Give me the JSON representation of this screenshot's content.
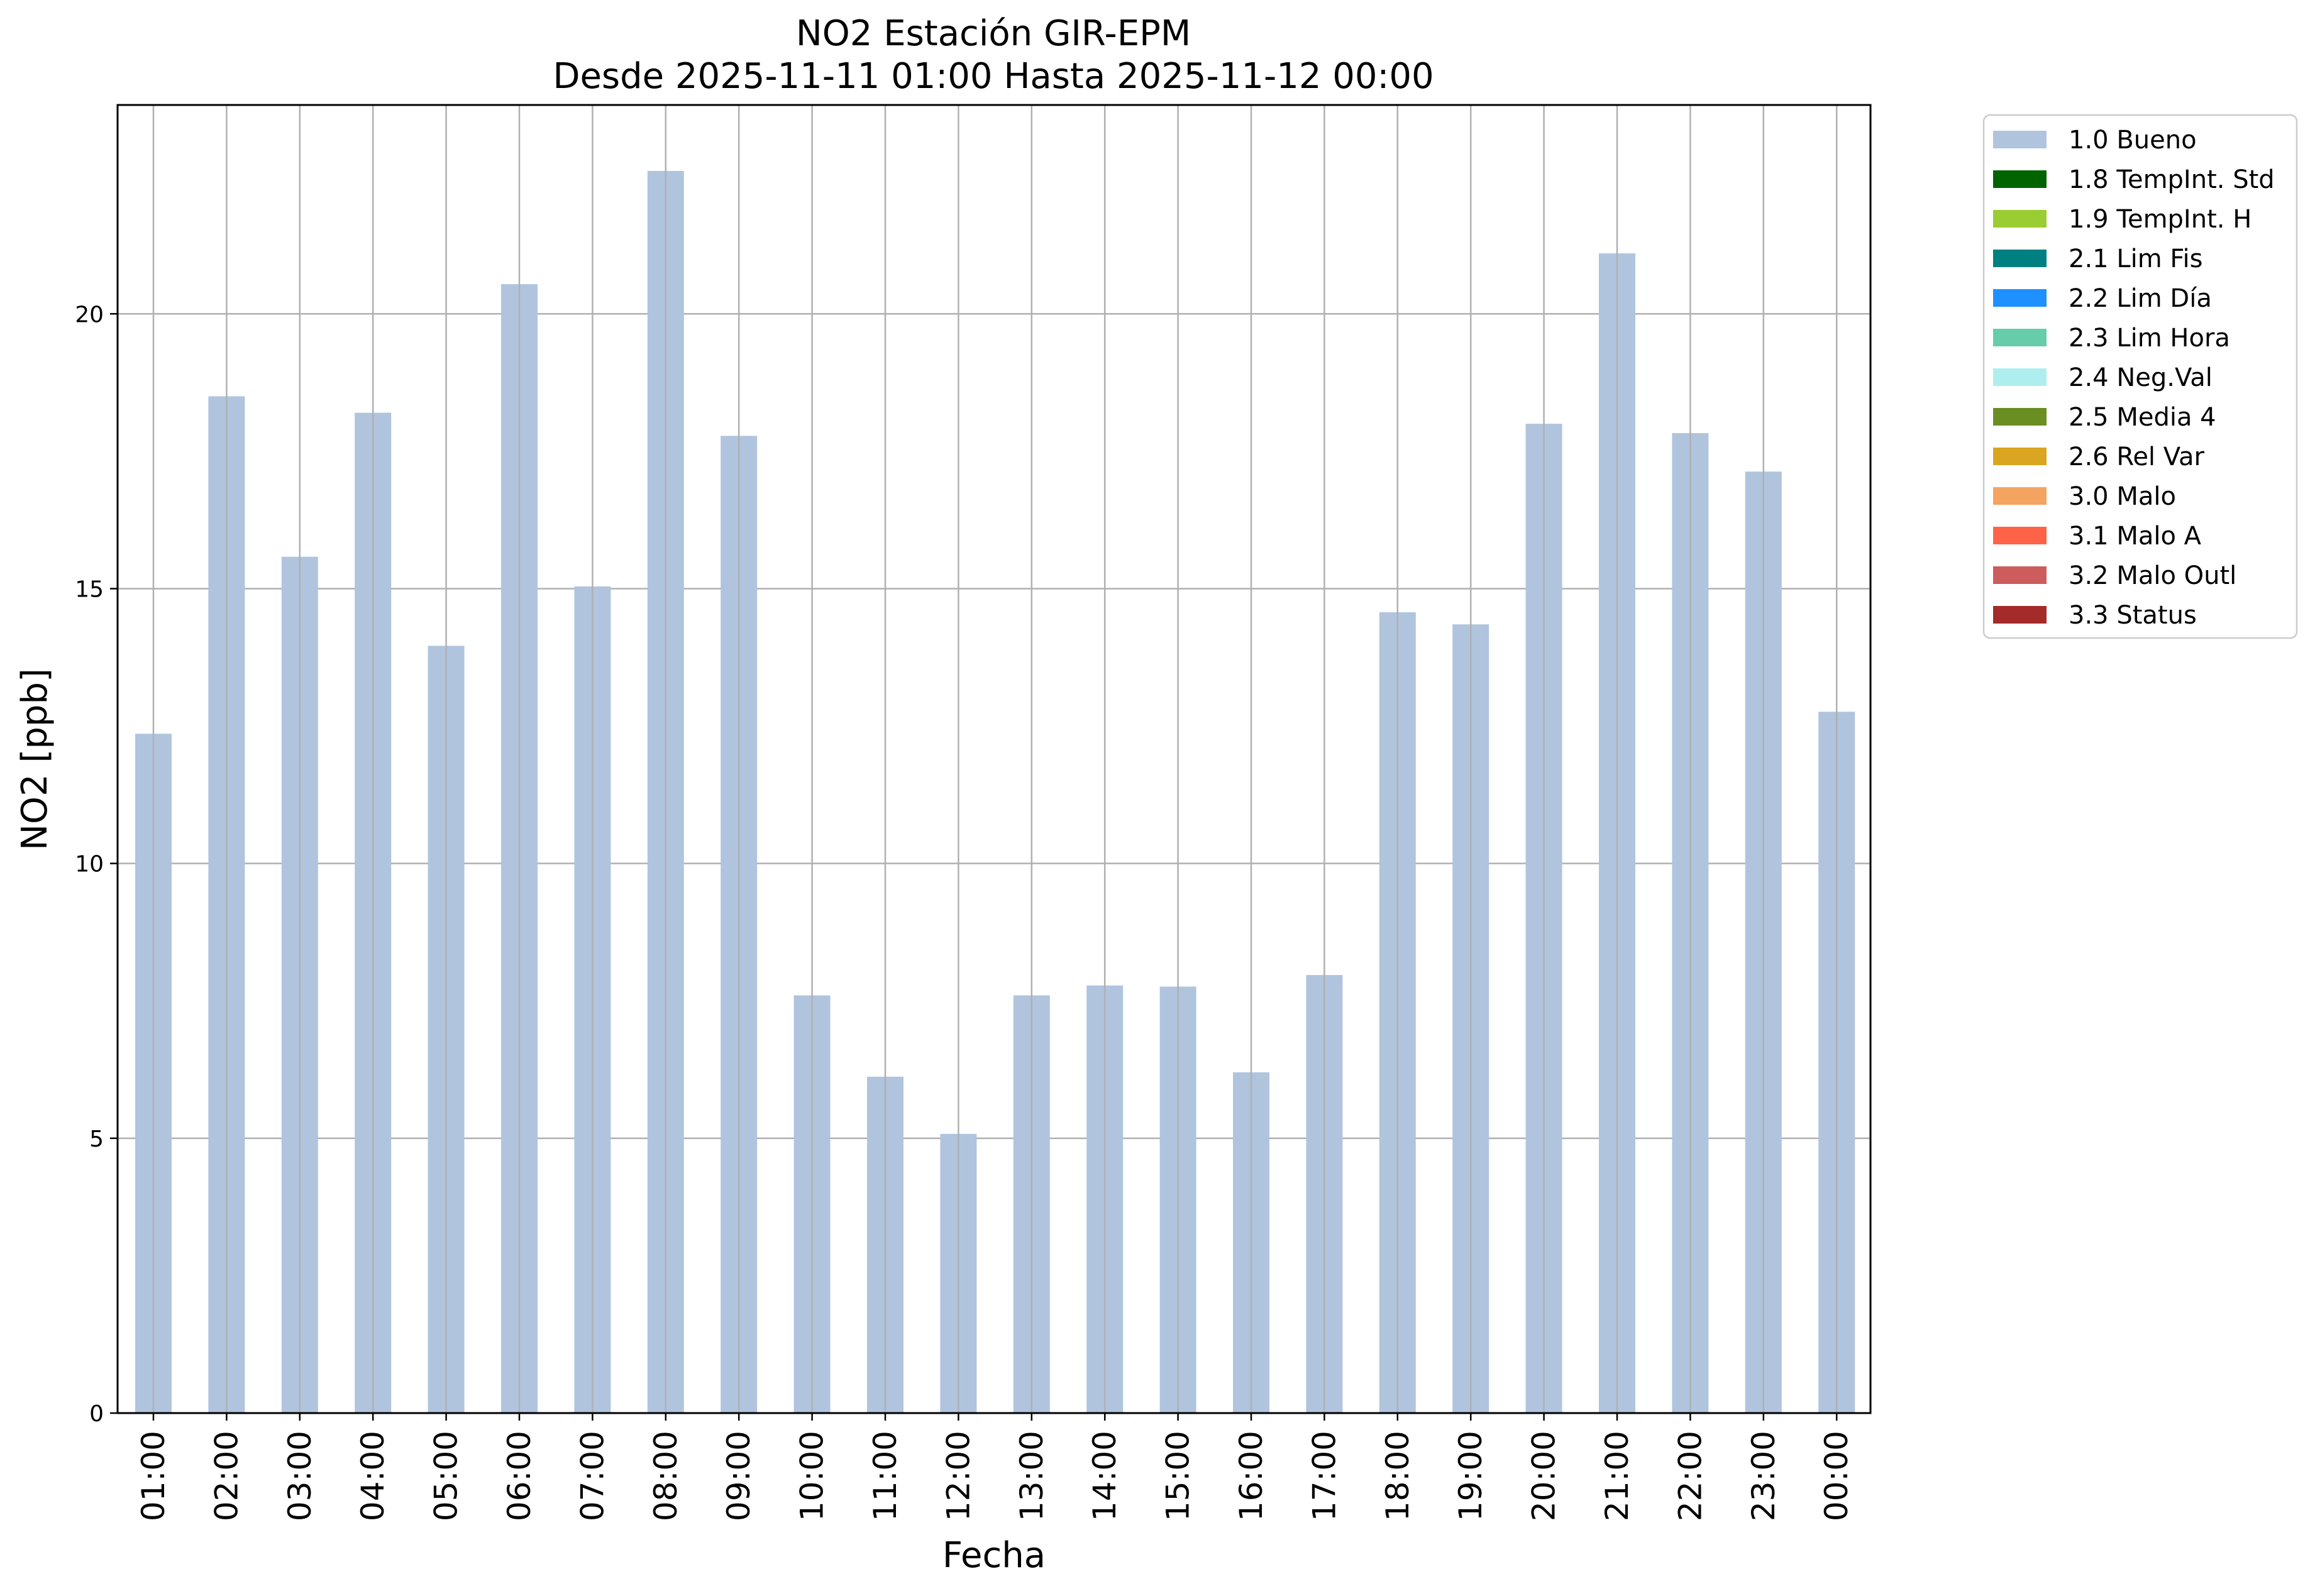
{
  "chart_data": {
    "type": "bar",
    "title": "NO2 Estación GIR-EPM",
    "subtitle": "Desde 2025-11-11 01:00 Hasta 2025-11-12 00:00",
    "xlabel": "Fecha",
    "ylabel": "NO2 [ppb]",
    "ylim": [
      0,
      23.8
    ],
    "yticks": [
      "0",
      "5",
      "10",
      "15",
      "20"
    ],
    "grid": true,
    "legend_position": "outside top-right",
    "categories": [
      "01:00",
      "02:00",
      "03:00",
      "04:00",
      "05:00",
      "06:00",
      "07:00",
      "08:00",
      "09:00",
      "10:00",
      "11:00",
      "12:00",
      "13:00",
      "14:00",
      "15:00",
      "16:00",
      "17:00",
      "18:00",
      "19:00",
      "20:00",
      "21:00",
      "22:00",
      "23:00",
      "00:00"
    ],
    "series": [
      {
        "name": "1.0 Bueno",
        "color": "#b0c4de",
        "values": [
          12.36,
          18.5,
          15.58,
          18.2,
          13.96,
          20.54,
          15.04,
          22.6,
          17.78,
          7.6,
          6.12,
          5.08,
          7.6,
          7.78,
          7.76,
          6.2,
          7.97,
          14.57,
          14.35,
          18.0,
          21.1,
          17.83,
          17.13,
          12.76
        ]
      }
    ],
    "legend": [
      {
        "label": "1.0 Bueno",
        "color": "#b0c4de"
      },
      {
        "label": "1.8 TempInt. Std",
        "color": "#006400"
      },
      {
        "label": "1.9 TempInt. H",
        "color": "#9acd32"
      },
      {
        "label": "2.1 Lim Fis",
        "color": "#008080"
      },
      {
        "label": "2.2 Lim Día",
        "color": "#1e90ff"
      },
      {
        "label": "2.3 Lim Hora",
        "color": "#66cdaa"
      },
      {
        "label": "2.4 Neg.Val",
        "color": "#afeeee"
      },
      {
        "label": "2.5 Media 4",
        "color": "#6b8e23"
      },
      {
        "label": "2.6 Rel Var",
        "color": "#daa520"
      },
      {
        "label": "3.0 Malo",
        "color": "#f4a460"
      },
      {
        "label": "3.1 Malo A",
        "color": "#ff6347"
      },
      {
        "label": "3.2 Malo Outl",
        "color": "#cd5c5c"
      },
      {
        "label": "3.3 Status",
        "color": "#a52a2a"
      }
    ]
  }
}
